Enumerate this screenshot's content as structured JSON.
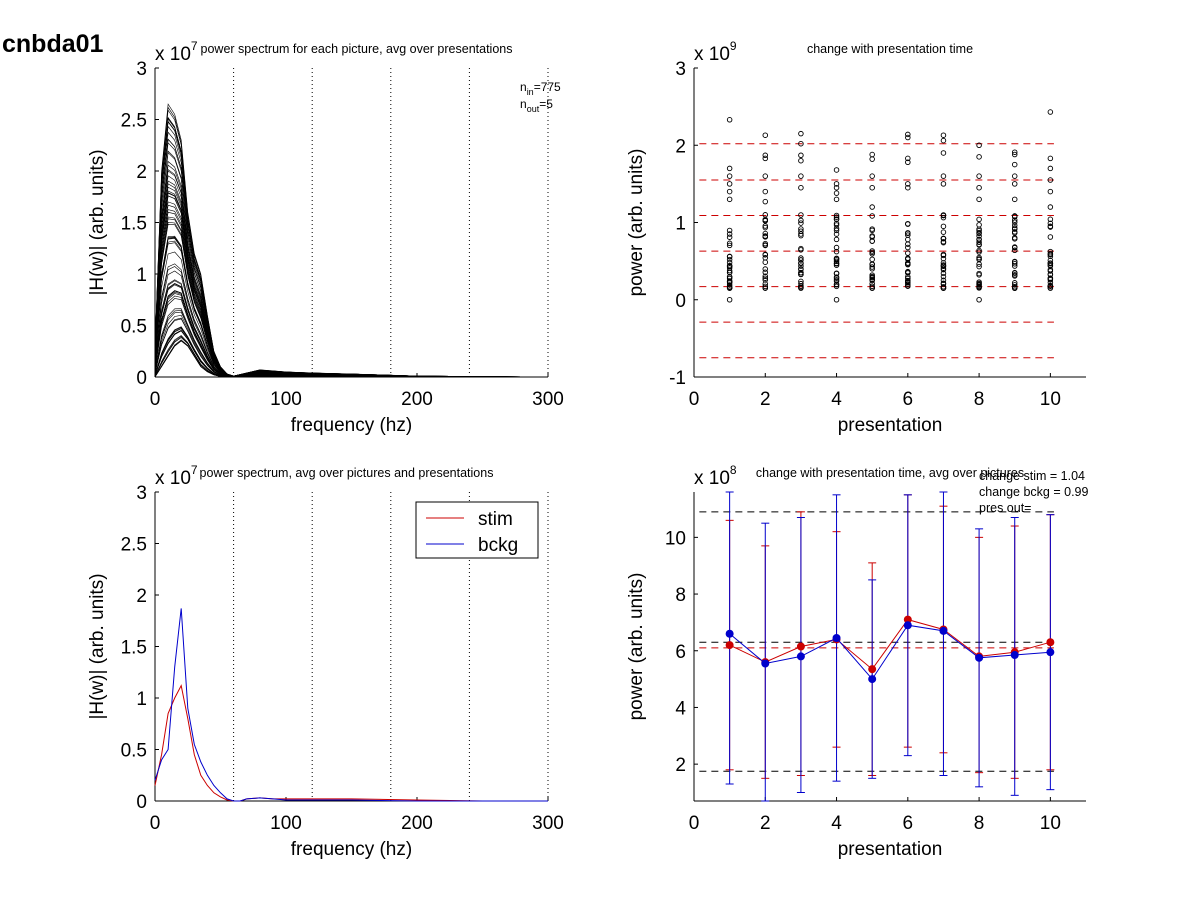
{
  "figure_label": "cnbda01",
  "chart_data": [
    {
      "type": "line",
      "title": "power spectrum for each picture, avg over presentations",
      "xlabel": "frequency (hz)",
      "ylabel": "|H(w)| (arb. units)",
      "y_exponent_label": "x 10",
      "y_exponent": "7",
      "xlim": [
        0,
        300
      ],
      "ylim": [
        0,
        3
      ],
      "xticks": [
        "0",
        "100",
        "200",
        "300"
      ],
      "yticks": [
        "0",
        "0.5",
        "1",
        "1.5",
        "2",
        "2.5",
        "3"
      ],
      "vlines": [
        60,
        120,
        180,
        240,
        300
      ],
      "annotations": [
        {
          "base": "n",
          "sub": "in",
          "value": "=775"
        },
        {
          "base": "n",
          "sub": "out",
          "value": "=5"
        }
      ],
      "series_count_shown": 775,
      "series_color": "#000000",
      "frequency_grid": [
        0,
        5,
        10,
        15,
        20,
        25,
        30,
        35,
        40,
        45,
        50,
        55,
        60,
        70,
        80,
        90,
        100,
        120,
        150,
        200,
        250,
        300
      ],
      "envelope_upper": [
        0.3,
        2.0,
        2.65,
        2.55,
        2.3,
        1.6,
        1.2,
        1.0,
        0.6,
        0.25,
        0.1,
        0.03,
        0.01,
        0.04,
        0.07,
        0.06,
        0.05,
        0.04,
        0.03,
        0.01,
        0.005,
        0.0
      ],
      "envelope_lower": [
        0.0,
        0.1,
        0.2,
        0.3,
        0.35,
        0.3,
        0.2,
        0.1,
        0.05,
        0.02,
        0.005,
        0.0,
        0.0,
        0.0,
        0.005,
        0.005,
        0.005,
        0.0,
        0.0,
        0.0,
        0.0,
        0.0
      ]
    },
    {
      "type": "scatter",
      "title": "change with presentation time",
      "xlabel": "presentation",
      "ylabel": "power (arb. units)",
      "y_exponent_label": "x 10",
      "y_exponent": "9",
      "xlim": [
        0,
        11
      ],
      "ylim": [
        -1,
        3
      ],
      "xticks": [
        "0",
        "2",
        "4",
        "6",
        "8",
        "10"
      ],
      "yticks": [
        "-1",
        "0",
        "1",
        "2",
        "3"
      ],
      "hlines": [
        2.02,
        1.55,
        1.09,
        0.63,
        0.17,
        -0.29,
        -0.75
      ],
      "hline_color": "#cc0000",
      "presentations": [
        1,
        2,
        3,
        4,
        5,
        6,
        7,
        8,
        9,
        10
      ],
      "outliers": [
        [
          2.33,
          1.7,
          1.6,
          1.5,
          1.4,
          1.3,
          0.0
        ],
        [
          2.13,
          1.87,
          1.83,
          1.6,
          1.4,
          1.27
        ],
        [
          2.15,
          2.02,
          1.87,
          1.8,
          1.6,
          1.45
        ],
        [
          1.68,
          1.5,
          1.45,
          1.38,
          1.3,
          0.0
        ],
        [
          1.88,
          1.82,
          1.6,
          1.45,
          1.2
        ],
        [
          2.14,
          2.1,
          1.83,
          1.78,
          1.5,
          1.45
        ],
        [
          2.13,
          2.06,
          1.9,
          1.6,
          1.5
        ],
        [
          2.0,
          1.85,
          1.6,
          1.45,
          1.3,
          0.0
        ],
        [
          1.91,
          1.88,
          1.75,
          1.6,
          1.5,
          1.3
        ],
        [
          2.43,
          1.83,
          1.7,
          1.55,
          1.4,
          1.2
        ]
      ],
      "dense_range": [
        0.15,
        1.1
      ],
      "marker": "open-circle"
    },
    {
      "type": "line",
      "title": "power spectrum, avg over pictures and presentations",
      "xlabel": "frequency (hz)",
      "ylabel": "|H(w)| (arb. units)",
      "y_exponent_label": "x 10",
      "y_exponent": "7",
      "xlim": [
        0,
        300
      ],
      "ylim": [
        0,
        3
      ],
      "xticks": [
        "0",
        "100",
        "200",
        "300"
      ],
      "yticks": [
        "0",
        "0.5",
        "1",
        "1.5",
        "2",
        "2.5",
        "3"
      ],
      "vlines": [
        60,
        120,
        180,
        240,
        300
      ],
      "legend": "top-right",
      "x": [
        0,
        5,
        10,
        15,
        20,
        25,
        30,
        35,
        40,
        45,
        50,
        55,
        60,
        65,
        70,
        80,
        90,
        100,
        120,
        150,
        200,
        250,
        300
      ],
      "series": [
        {
          "name": "stim",
          "color": "#cc0000",
          "values": [
            0.15,
            0.45,
            0.85,
            1.0,
            1.12,
            0.8,
            0.45,
            0.25,
            0.15,
            0.08,
            0.04,
            0.01,
            0.0,
            0.0,
            0.02,
            0.03,
            0.02,
            0.02,
            0.02,
            0.02,
            0.01,
            0.0,
            0.0
          ]
        },
        {
          "name": "bckg",
          "color": "#0000cc",
          "values": [
            0.2,
            0.4,
            0.5,
            1.3,
            1.87,
            0.9,
            0.55,
            0.38,
            0.25,
            0.15,
            0.08,
            0.02,
            0.0,
            0.0,
            0.02,
            0.03,
            0.02,
            0.01,
            0.01,
            0.01,
            0.0,
            0.0,
            0.0
          ]
        }
      ]
    },
    {
      "type": "line",
      "title": "change with presentation time, avg over pictures",
      "xlabel": "presentation",
      "ylabel": "power (arb. units)",
      "y_exponent_label": "x 10",
      "y_exponent": "8",
      "xlim": [
        0,
        11
      ],
      "ylim": [
        0.7,
        11.6
      ],
      "xticks": [
        "0",
        "2",
        "4",
        "6",
        "8",
        "10"
      ],
      "yticks": [
        "2",
        "4",
        "6",
        "8",
        "10"
      ],
      "annotations": [
        "change stim = 1.04",
        "change bckg = 0.99",
        "pres out="
      ],
      "hlines": [
        {
          "y": 10.9,
          "color": "#000000"
        },
        {
          "y": 6.3,
          "color": "#000000"
        },
        {
          "y": 1.75,
          "color": "#000000"
        },
        {
          "y": 6.1,
          "color": "#cc0000"
        }
      ],
      "x": [
        1,
        2,
        3,
        4,
        5,
        6,
        7,
        8,
        9,
        10
      ],
      "series": [
        {
          "name": "stim",
          "color": "#cc0000",
          "values": [
            6.2,
            5.6,
            6.15,
            6.4,
            5.35,
            7.1,
            6.75,
            5.8,
            5.95,
            6.3
          ],
          "err_upper": [
            10.6,
            9.7,
            10.9,
            10.2,
            9.1,
            11.5,
            11.1,
            10.0,
            10.4,
            10.8
          ],
          "err_lower": [
            1.8,
            1.5,
            1.6,
            2.6,
            1.6,
            2.6,
            2.4,
            1.7,
            1.5,
            1.8
          ]
        },
        {
          "name": "bckg",
          "color": "#0000cc",
          "values": [
            6.6,
            5.55,
            5.8,
            6.45,
            5.0,
            6.9,
            6.7,
            5.75,
            5.85,
            5.95
          ],
          "err_upper": [
            11.9,
            10.5,
            10.7,
            11.5,
            8.5,
            11.5,
            11.9,
            10.3,
            10.7,
            10.8
          ],
          "err_lower": [
            1.3,
            0.6,
            1.0,
            1.4,
            1.5,
            2.3,
            1.6,
            1.2,
            0.9,
            1.1
          ]
        }
      ]
    }
  ]
}
